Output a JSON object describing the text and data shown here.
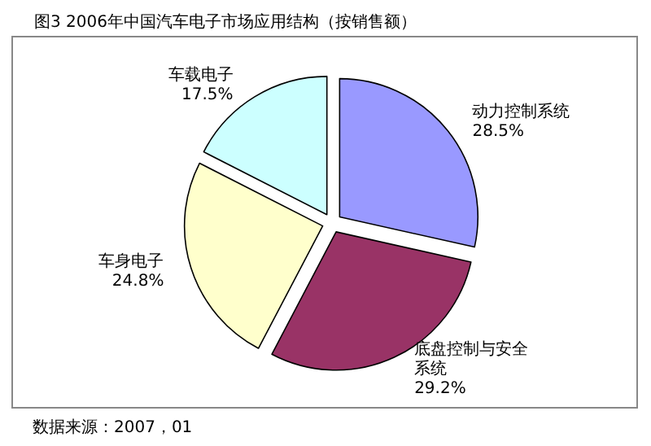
{
  "chart_data": {
    "type": "pie",
    "title": "图3 2006年中国汽车电子市场应用结构（按销售额）",
    "categories": [
      "动力控制系统",
      "底盘控制与安全系统",
      "车身电子",
      "车载电子"
    ],
    "values": [
      28.5,
      29.2,
      24.8,
      17.5
    ],
    "colors": [
      "#9999ff",
      "#993366",
      "#ffffcc",
      "#ccffff"
    ],
    "annotations": [
      "数据来源：2007，01"
    ],
    "value_labels": [
      "28.5%",
      "29.2%",
      "24.8%",
      "17.5%"
    ],
    "legend": false
  }
}
